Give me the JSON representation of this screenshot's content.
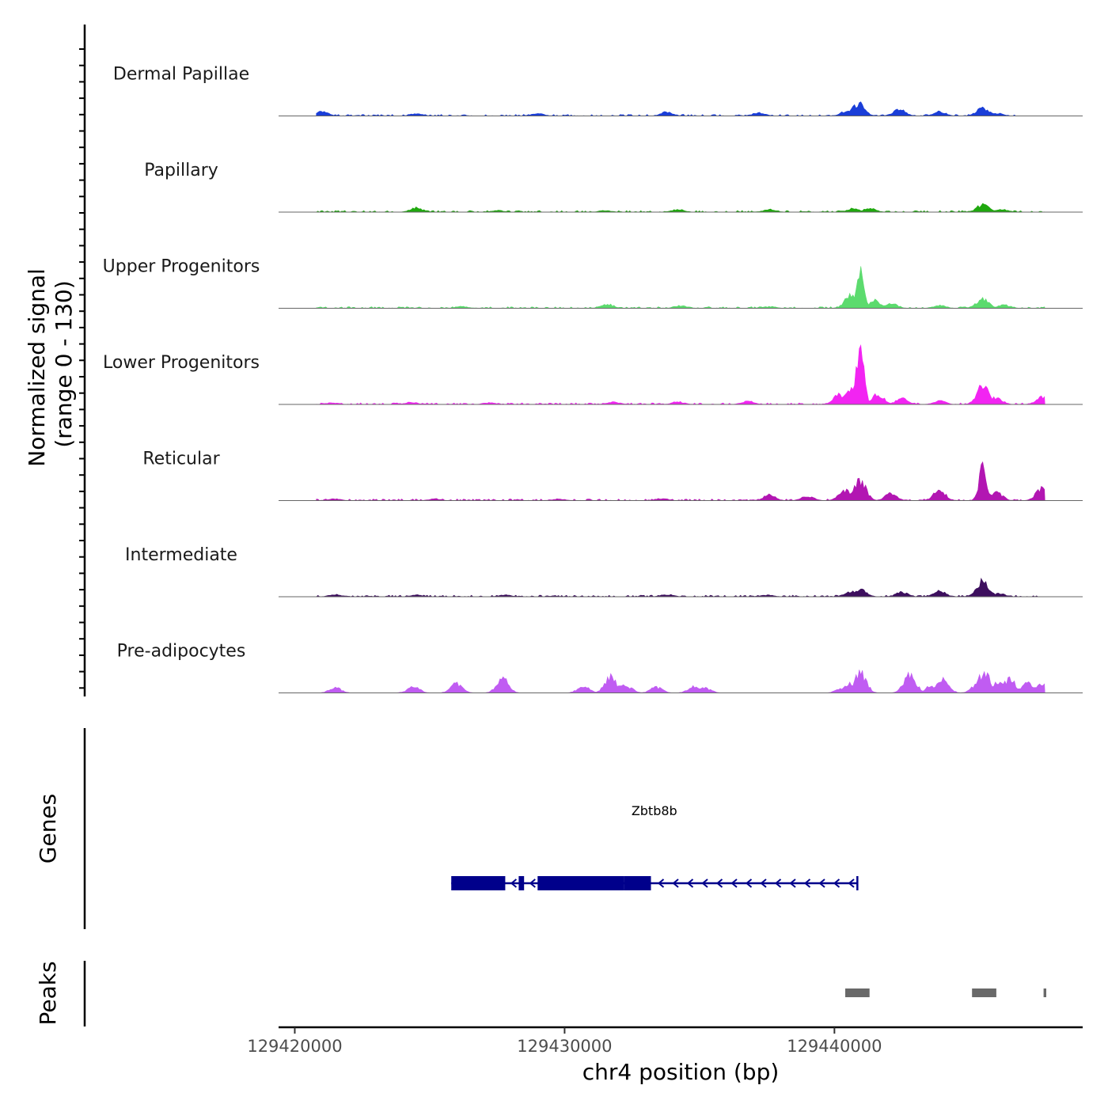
{
  "chart_data": {
    "type": "area",
    "chromosome": "chr4",
    "x_range": [
      129419400,
      129449200
    ],
    "coverage_panel": {
      "ylabel_line1": "Normalized signal",
      "ylabel_line2": "(range 0 - 130)",
      "y_range": [
        0,
        130
      ]
    },
    "tracks": [
      {
        "name": "Dermal Papillae",
        "color": "#1a3ed8",
        "region": [
          129420800,
          129446800
        ],
        "peaks": [
          [
            129421000,
            8
          ],
          [
            129424500,
            4
          ],
          [
            129429000,
            4
          ],
          [
            129433800,
            7
          ],
          [
            129437200,
            6
          ],
          [
            129440500,
            10
          ],
          [
            129440900,
            22
          ],
          [
            129442400,
            12
          ],
          [
            129443900,
            8
          ],
          [
            129445500,
            15
          ],
          [
            129446000,
            5
          ]
        ]
      },
      {
        "name": "Papillary",
        "color": "#1fa80e",
        "region": [
          129420800,
          129447800
        ],
        "peaks": [
          [
            129424500,
            8
          ],
          [
            129427500,
            3
          ],
          [
            129431500,
            3
          ],
          [
            129434200,
            5
          ],
          [
            129437600,
            5
          ],
          [
            129440700,
            6
          ],
          [
            129441300,
            7
          ],
          [
            129445500,
            13
          ],
          [
            129446200,
            5
          ]
        ]
      },
      {
        "name": "Upper Progenitors",
        "color": "#5cdb6e",
        "region": [
          129420800,
          129447800
        ],
        "peaks": [
          [
            129426200,
            3
          ],
          [
            129431600,
            7
          ],
          [
            129434300,
            5
          ],
          [
            129437600,
            3
          ],
          [
            129440600,
            22
          ],
          [
            129440950,
            68
          ],
          [
            129441500,
            14
          ],
          [
            129442100,
            10
          ],
          [
            129443900,
            5
          ],
          [
            129445500,
            18
          ],
          [
            129446300,
            6
          ]
        ]
      },
      {
        "name": "Lower Progenitors",
        "color": "#f224f2",
        "region": [
          129420800,
          129447800
        ],
        "peaks": [
          [
            129421400,
            3
          ],
          [
            129424300,
            4
          ],
          [
            129427200,
            3
          ],
          [
            129431800,
            5
          ],
          [
            129434200,
            5
          ],
          [
            129436800,
            6
          ],
          [
            129440200,
            18
          ],
          [
            129440600,
            25
          ],
          [
            129440950,
            105
          ],
          [
            129441600,
            18
          ],
          [
            129442500,
            10
          ],
          [
            129443900,
            6
          ],
          [
            129445500,
            35
          ],
          [
            129446000,
            12
          ],
          [
            129447700,
            13
          ]
        ]
      },
      {
        "name": "Reticular",
        "color": "#b216b2",
        "region": [
          129420800,
          129447800
        ],
        "peaks": [
          [
            129421500,
            3
          ],
          [
            129425200,
            3
          ],
          [
            129429800,
            3
          ],
          [
            129433600,
            4
          ],
          [
            129437600,
            10
          ],
          [
            129439000,
            8
          ],
          [
            129440400,
            20
          ],
          [
            129440950,
            35
          ],
          [
            129442100,
            12
          ],
          [
            129443900,
            18
          ],
          [
            129445500,
            57
          ],
          [
            129446000,
            15
          ],
          [
            129447700,
            22
          ]
        ]
      },
      {
        "name": "Intermediate",
        "color": "#3d0f5e",
        "region": [
          129420800,
          129447800
        ],
        "peaks": [
          [
            129421500,
            4
          ],
          [
            129424500,
            3
          ],
          [
            129427800,
            3
          ],
          [
            129433800,
            4
          ],
          [
            129437500,
            3
          ],
          [
            129440600,
            9
          ],
          [
            129440950,
            14
          ],
          [
            129442500,
            8
          ],
          [
            129443900,
            10
          ],
          [
            129445500,
            28
          ],
          [
            129446100,
            6
          ]
        ]
      },
      {
        "name": "Pre-adipocytes",
        "color": "#c05cf2",
        "region": [
          129420800,
          129447800
        ],
        "peaks": [
          [
            129421500,
            9
          ],
          [
            129424400,
            11
          ],
          [
            129426000,
            16
          ],
          [
            129427700,
            25
          ],
          [
            129430700,
            12
          ],
          [
            129431700,
            28
          ],
          [
            129432100,
            16
          ],
          [
            129432300,
            12
          ],
          [
            129433400,
            10
          ],
          [
            129434800,
            12
          ],
          [
            129435200,
            9
          ],
          [
            129440300,
            9
          ],
          [
            129440600,
            16
          ],
          [
            129440950,
            36
          ],
          [
            129442800,
            33
          ],
          [
            129443600,
            12
          ],
          [
            129444000,
            28
          ],
          [
            129445300,
            14
          ],
          [
            129445550,
            35
          ],
          [
            129446100,
            21
          ],
          [
            129446500,
            24
          ],
          [
            129447200,
            18
          ],
          [
            129447700,
            16
          ]
        ]
      }
    ],
    "genes": {
      "label": "Genes",
      "items": [
        {
          "name": "Zbtb8b",
          "color": "#00008b",
          "strand": "-",
          "start": 129425800,
          "end": 129440850,
          "blocks": [
            [
              129425800,
              129427800
            ],
            [
              129428300,
              129428500
            ],
            [
              129429000,
              129432200
            ],
            [
              129432200,
              129433200
            ]
          ]
        }
      ]
    },
    "peaks_track": {
      "label": "Peaks",
      "color": "#696969",
      "regions": [
        [
          129440400,
          129441300
        ],
        [
          129445100,
          129446000
        ],
        [
          129447750,
          129447850
        ]
      ]
    },
    "x_axis": {
      "title": "chr4 position (bp)",
      "ticks": [
        129420000,
        129430000,
        129440000
      ],
      "tick_labels": [
        "129420000",
        "129430000",
        "129440000"
      ]
    }
  }
}
